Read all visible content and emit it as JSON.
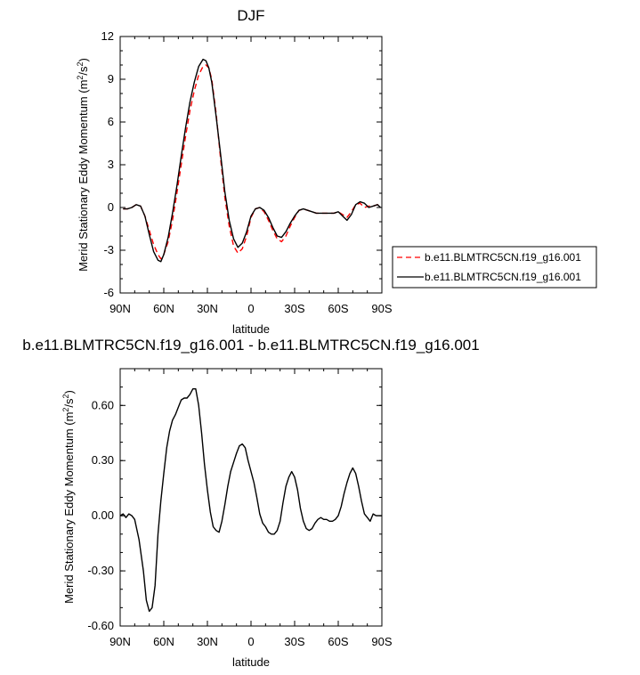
{
  "chart_data": [
    {
      "type": "line",
      "title": "DJF",
      "xlabel": "latitude",
      "ylabel": "Merid Stationary Eddy Momentum (m²/s²)",
      "ylabel_parts": {
        "pre": "Merid Stationary Eddy Momentum (m",
        "sup1": "2",
        "mid": "/s",
        "sup2": "2",
        "post": ")"
      },
      "xlim": [
        90,
        -90
      ],
      "ylim": [
        -6,
        12
      ],
      "yticks": [
        -6,
        -3,
        0,
        3,
        6,
        9,
        12
      ],
      "ytick_labels": [
        "-6",
        "-3",
        "0",
        "3",
        "6",
        "9",
        "12"
      ],
      "xticks": [
        90,
        60,
        30,
        0,
        -30,
        -60,
        -90
      ],
      "xtick_labels": [
        "90N",
        "60N",
        "30N",
        "0",
        "30S",
        "60S",
        "90S"
      ],
      "legend_placement": "right",
      "series": [
        {
          "name": "b.e11.BLMTRC5CN.f19_g16.001",
          "color": "#ff0000",
          "dash": "dashed",
          "x": [
            88,
            85,
            82,
            79,
            76,
            73,
            70,
            67,
            64,
            62,
            60,
            57,
            54,
            51,
            48,
            45,
            42,
            39,
            36,
            33,
            31,
            29,
            27,
            24,
            21,
            18,
            15,
            12,
            9,
            6,
            3,
            0,
            -3,
            -6,
            -9,
            -12,
            -15,
            -18,
            -21,
            -24,
            -27,
            -30,
            -33,
            -36,
            -39,
            -42,
            -45,
            -48,
            -51,
            -54,
            -57,
            -60,
            -63,
            -66,
            -69,
            -72,
            -75,
            -78,
            -81,
            -84,
            -87,
            -89
          ],
          "y": [
            -0.1,
            -0.1,
            0.0,
            0.2,
            0.1,
            -0.6,
            -1.6,
            -2.6,
            -3.3,
            -3.6,
            -3.3,
            -2.4,
            -0.9,
            1.0,
            3.0,
            5.0,
            6.8,
            8.2,
            9.3,
            9.9,
            10.0,
            9.8,
            9.0,
            6.6,
            3.5,
            0.7,
            -1.3,
            -2.7,
            -3.2,
            -2.9,
            -2.0,
            -0.7,
            -0.1,
            0.0,
            -0.3,
            -0.9,
            -1.6,
            -2.2,
            -2.4,
            -2.0,
            -1.3,
            -0.7,
            -0.2,
            -0.1,
            -0.2,
            -0.3,
            -0.4,
            -0.4,
            -0.4,
            -0.4,
            -0.4,
            -0.3,
            -0.5,
            -0.7,
            -0.3,
            0.2,
            0.3,
            0.0,
            0.1,
            0.1,
            0.2,
            0.0
          ]
        },
        {
          "name": "b.e11.BLMTRC5CN.f19_g16.001",
          "color": "#000000",
          "dash": "solid",
          "x": [
            88,
            85,
            82,
            79,
            76,
            73,
            70,
            67,
            64,
            62,
            60,
            57,
            54,
            51,
            48,
            45,
            42,
            39,
            36,
            33,
            31,
            29,
            27,
            24,
            21,
            18,
            15,
            12,
            9,
            6,
            3,
            0,
            -3,
            -6,
            -9,
            -12,
            -15,
            -18,
            -21,
            -24,
            -27,
            -30,
            -33,
            -36,
            -39,
            -42,
            -45,
            -48,
            -51,
            -54,
            -57,
            -60,
            -63,
            -66,
            -69,
            -72,
            -75,
            -78,
            -81,
            -84,
            -87,
            -89
          ],
          "y": [
            -0.1,
            -0.1,
            0.0,
            0.2,
            0.1,
            -0.6,
            -1.9,
            -3.1,
            -3.7,
            -3.8,
            -3.3,
            -2.1,
            -0.4,
            1.5,
            3.6,
            5.6,
            7.4,
            8.8,
            9.9,
            10.4,
            10.3,
            9.8,
            8.8,
            6.4,
            3.8,
            1.1,
            -0.9,
            -2.2,
            -2.8,
            -2.5,
            -1.7,
            -0.6,
            -0.1,
            0.0,
            -0.2,
            -0.7,
            -1.4,
            -2.0,
            -2.1,
            -1.7,
            -1.1,
            -0.6,
            -0.2,
            -0.1,
            -0.2,
            -0.3,
            -0.4,
            -0.4,
            -0.4,
            -0.4,
            -0.4,
            -0.3,
            -0.6,
            -0.9,
            -0.5,
            0.2,
            0.4,
            0.3,
            0.0,
            0.1,
            0.2,
            0.0
          ]
        }
      ]
    },
    {
      "type": "line",
      "title": "b.e11.BLMTRC5CN.f19_g16.001 - b.e11.BLMTRC5CN.f19_g16.001",
      "xlabel": "latitude",
      "ylabel": "Merid Stationary Eddy Momentum (m²/s²)",
      "ylabel_parts": {
        "pre": "Merid Stationary Eddy Momentum (m",
        "sup1": "2",
        "mid": "/s",
        "sup2": "2",
        "post": ")"
      },
      "xlim": [
        90,
        -90
      ],
      "ylim": [
        -0.6,
        0.8
      ],
      "yticks": [
        -0.6,
        -0.3,
        0.0,
        0.3,
        0.6
      ],
      "ytick_labels": [
        "-0.60",
        "-0.30",
        "0.00",
        "0.30",
        "0.60"
      ],
      "xticks": [
        90,
        60,
        30,
        0,
        -30,
        -60,
        -90
      ],
      "xtick_labels": [
        "90N",
        "60N",
        "30N",
        "0",
        "30S",
        "60S",
        "90S"
      ],
      "series": [
        {
          "color": "#000000",
          "x": [
            90,
            88,
            86,
            84,
            82,
            80,
            77,
            74,
            72,
            70,
            68,
            66,
            64,
            62,
            60,
            58,
            56,
            54,
            52,
            50,
            48,
            46,
            44,
            42,
            40,
            38,
            36,
            34,
            32,
            30,
            28,
            26,
            24,
            22,
            20,
            18,
            16,
            14,
            12,
            10,
            8,
            6,
            4,
            2,
            0,
            -2,
            -4,
            -6,
            -8,
            -10,
            -12,
            -14,
            -16,
            -18,
            -20,
            -22,
            -24,
            -26,
            -28,
            -30,
            -32,
            -34,
            -36,
            -38,
            -40,
            -42,
            -44,
            -46,
            -48,
            -50,
            -52,
            -54,
            -56,
            -58,
            -60,
            -62,
            -64,
            -66,
            -68,
            -70,
            -72,
            -74,
            -76,
            -78,
            -80,
            -82,
            -84,
            -86,
            -88,
            -90
          ],
          "y": [
            0.0,
            0.01,
            -0.01,
            0.01,
            0.0,
            -0.02,
            -0.13,
            -0.3,
            -0.46,
            -0.52,
            -0.5,
            -0.38,
            -0.1,
            0.08,
            0.23,
            0.37,
            0.46,
            0.52,
            0.55,
            0.59,
            0.63,
            0.64,
            0.64,
            0.66,
            0.69,
            0.69,
            0.6,
            0.45,
            0.28,
            0.14,
            0.02,
            -0.06,
            -0.08,
            -0.09,
            -0.03,
            0.06,
            0.16,
            0.24,
            0.29,
            0.34,
            0.38,
            0.39,
            0.37,
            0.3,
            0.24,
            0.18,
            0.1,
            0.01,
            -0.04,
            -0.06,
            -0.09,
            -0.1,
            -0.1,
            -0.08,
            -0.03,
            0.07,
            0.16,
            0.21,
            0.24,
            0.21,
            0.14,
            0.04,
            -0.03,
            -0.07,
            -0.08,
            -0.07,
            -0.04,
            -0.02,
            -0.01,
            -0.02,
            -0.02,
            -0.03,
            -0.03,
            -0.02,
            0.0,
            0.05,
            0.12,
            0.18,
            0.23,
            0.26,
            0.23,
            0.16,
            0.08,
            0.01,
            -0.01,
            -0.03,
            0.01,
            0.0,
            0.0,
            0.0
          ]
        }
      ]
    }
  ]
}
